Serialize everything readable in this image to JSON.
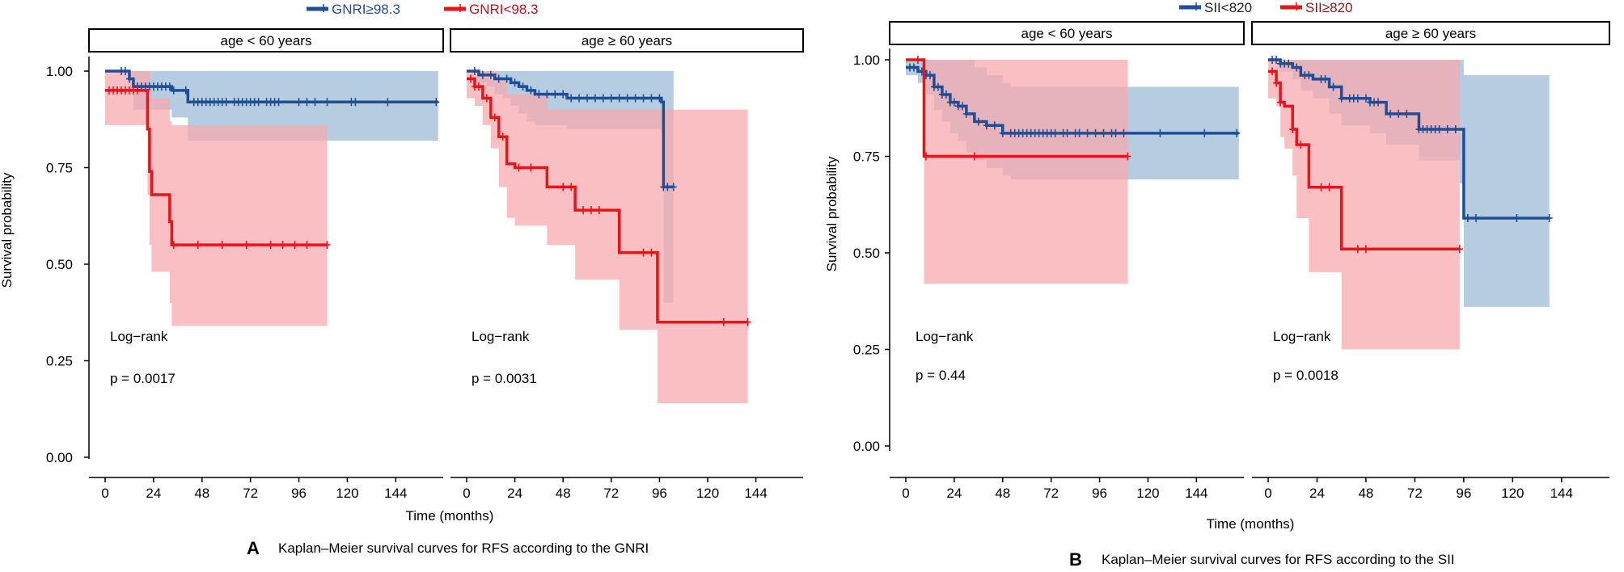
{
  "colors": {
    "blue": "#1f4e96",
    "blue_band": "#a8c3dc",
    "red": "#e8141b",
    "red_band": "#f7aaad",
    "legend_red_text": "#c0101a",
    "legend_blue_text": "#1f4e96",
    "legend_darkred_text": "#8b1a1a"
  },
  "chart_data": [
    {
      "type": "line",
      "panel_letter": "A",
      "caption": "Kaplan–Meier survival curves for RFS according to the GNRI",
      "xlabel": "Time (months)",
      "ylabel": "Survival probability",
      "ylim": [
        0,
        1
      ],
      "yticks": [
        "0.00",
        "0.25",
        "0.50",
        "0.75",
        "1.00"
      ],
      "yticks_values": [
        0,
        0.25,
        0.5,
        0.75,
        1.0
      ],
      "xticks": [
        0,
        24,
        48,
        72,
        96,
        120,
        144
      ],
      "legend": [
        {
          "label": "GNRI≥98.3",
          "color": "blue",
          "text_color": "legend_blue_text",
          "prefix": "",
          "colored": "GNRI≥98.3"
        },
        {
          "label": "GNRI<98.3",
          "color": "red",
          "text_color": "legend_red_text",
          "prefix": "",
          "colored": "GNRI<98.3"
        }
      ],
      "facets": [
        {
          "strip": "age < 60 years",
          "xlim": [
            -3,
            165
          ],
          "annotation": [
            "Log−rank",
            "p = 0.0017"
          ],
          "series": [
            {
              "name": "GNRI≥98.3",
              "color": "blue",
              "x": [
                0,
                12,
                14,
                33,
                41,
                165
              ],
              "y": [
                1.0,
                0.98,
                0.96,
                0.95,
                0.92,
                0.92
              ],
              "upper": [
                1.0,
                1.0,
                1.0,
                1.0,
                1.0,
                1.0
              ],
              "lower": [
                1.0,
                0.95,
                0.9,
                0.88,
                0.82,
                0.82
              ],
              "censor_x": [
                8,
                10,
                12,
                16,
                18,
                20,
                22,
                24,
                26,
                28,
                30,
                32,
                34,
                40,
                44,
                46,
                48,
                50,
                52,
                54,
                56,
                58,
                60,
                64,
                66,
                68,
                70,
                72,
                74,
                76,
                80,
                82,
                84,
                86,
                96,
                100,
                104,
                110,
                122,
                124,
                140,
                164
              ]
            },
            {
              "name": "GNRI<98.3",
              "color": "red",
              "x": [
                0,
                20,
                21,
                22,
                23,
                32,
                33,
                110
              ],
              "y": [
                0.95,
                0.95,
                0.85,
                0.74,
                0.68,
                0.61,
                0.55,
                0.55
              ],
              "upper": [
                1.0,
                1.0,
                1.0,
                0.96,
                0.93,
                0.87,
                0.86,
                0.86
              ],
              "lower": [
                0.86,
                0.86,
                0.68,
                0.55,
                0.48,
                0.4,
                0.34,
                0.34
              ],
              "censor_x": [
                2,
                4,
                6,
                8,
                10,
                12,
                14,
                16,
                34,
                46,
                58,
                70,
                82,
                88,
                94,
                100,
                110
              ]
            }
          ]
        },
        {
          "strip": "age ≥ 60 years",
          "xlim": [
            -3,
            165
          ],
          "annotation": [
            "Log−rank",
            "p = 0.0031"
          ],
          "series": [
            {
              "name": "GNRI≥98.3",
              "color": "blue",
              "x": [
                0,
                6,
                10,
                14,
                18,
                22,
                26,
                30,
                34,
                50,
                54,
                97,
                98,
                103
              ],
              "y": [
                1.0,
                0.99,
                0.99,
                0.98,
                0.98,
                0.97,
                0.96,
                0.95,
                0.94,
                0.93,
                0.93,
                0.92,
                0.7,
                0.7
              ],
              "upper": [
                1.0,
                1.0,
                1.0,
                1.0,
                1.0,
                1.0,
                1.0,
                1.0,
                1.0,
                1.0,
                1.0,
                1.0,
                1.0,
                1.0
              ],
              "lower": [
                1.0,
                0.97,
                0.96,
                0.94,
                0.93,
                0.91,
                0.89,
                0.87,
                0.86,
                0.85,
                0.85,
                0.84,
                0.4,
                0.4
              ],
              "censor_x": [
                4,
                8,
                12,
                16,
                20,
                24,
                28,
                32,
                36,
                40,
                44,
                48,
                52,
                56,
                60,
                64,
                68,
                72,
                76,
                80,
                84,
                88,
                92,
                96,
                98,
                100,
                103
              ]
            },
            {
              "name": "GNRI<98.3",
              "color": "red",
              "x": [
                0,
                4,
                8,
                12,
                16,
                20,
                24,
                40,
                54,
                76,
                95,
                140
              ],
              "y": [
                0.98,
                0.96,
                0.93,
                0.88,
                0.83,
                0.76,
                0.75,
                0.7,
                0.64,
                0.53,
                0.35,
                0.35
              ],
              "upper": [
                1.0,
                1.0,
                1.0,
                1.0,
                0.98,
                0.94,
                0.94,
                0.9,
                0.9,
                0.9,
                0.9,
                0.9
              ],
              "lower": [
                0.93,
                0.91,
                0.86,
                0.8,
                0.7,
                0.62,
                0.6,
                0.55,
                0.46,
                0.33,
                0.14,
                0.14
              ],
              "censor_x": [
                2,
                4,
                6,
                10,
                14,
                18,
                26,
                32,
                48,
                52,
                58,
                62,
                66,
                88,
                92,
                128,
                140
              ]
            }
          ]
        }
      ]
    },
    {
      "type": "line",
      "panel_letter": "B",
      "caption": "Kaplan–Meier survival curves for RFS according to the SII",
      "xlabel": "Time (months)",
      "ylabel": "Survival probability",
      "ylim": [
        0,
        1
      ],
      "yticks": [
        "0.00",
        "0.25",
        "0.50",
        "0.75",
        "1.00"
      ],
      "yticks_values": [
        0,
        0.25,
        0.5,
        0.75,
        1.0
      ],
      "xticks": [
        0,
        24,
        48,
        72,
        96,
        120,
        144
      ],
      "legend": [
        {
          "label": "SII<820",
          "color": "blue",
          "text_color": "legend_darkred_text",
          "colored": "SII<820"
        },
        {
          "label": "SII≥820",
          "color": "red",
          "text_color": "legend_darkred_text",
          "colored": "SII≥820"
        }
      ],
      "facets": [
        {
          "strip": "age < 60 years",
          "xlim": [
            -3,
            165
          ],
          "annotation": [
            "Log−rank",
            "p = 0.44"
          ],
          "series": [
            {
              "name": "SII<820",
              "color": "blue",
              "x": [
                0,
                6,
                10,
                14,
                18,
                22,
                26,
                30,
                34,
                40,
                48,
                52,
                165
              ],
              "y": [
                0.98,
                0.97,
                0.96,
                0.93,
                0.91,
                0.89,
                0.88,
                0.86,
                0.84,
                0.83,
                0.81,
                0.81,
                0.81
              ],
              "upper": [
                1.0,
                1.0,
                1.0,
                1.0,
                1.0,
                1.0,
                1.0,
                1.0,
                0.98,
                0.96,
                0.94,
                0.93,
                0.93
              ],
              "lower": [
                0.96,
                0.94,
                0.91,
                0.87,
                0.84,
                0.81,
                0.79,
                0.76,
                0.74,
                0.72,
                0.7,
                0.69,
                0.69
              ],
              "censor_x": [
                2,
                4,
                8,
                10,
                12,
                14,
                16,
                18,
                20,
                22,
                24,
                26,
                28,
                30,
                36,
                40,
                44,
                48,
                52,
                54,
                56,
                58,
                60,
                62,
                64,
                66,
                68,
                70,
                72,
                74,
                78,
                80,
                84,
                86,
                90,
                94,
                98,
                102,
                104,
                108,
                126,
                148,
                164
              ]
            },
            {
              "name": "SII≥820",
              "color": "red",
              "x": [
                0,
                8,
                9,
                110
              ],
              "y": [
                1.0,
                1.0,
                0.75,
                0.75
              ],
              "upper": [
                1.0,
                1.0,
                1.0,
                1.0
              ],
              "lower": [
                1.0,
                1.0,
                0.42,
                0.42
              ],
              "censor_x": [
                6,
                10,
                34,
                110
              ]
            }
          ]
        },
        {
          "strip": "age ≥ 60 years",
          "xlim": [
            -3,
            165
          ],
          "annotation": [
            "Log−rank",
            "p = 0.0018"
          ],
          "series": [
            {
              "name": "SII<820",
              "color": "blue",
              "x": [
                0,
                6,
                12,
                16,
                22,
                30,
                36,
                50,
                58,
                74,
                94,
                96,
                138
              ],
              "y": [
                1.0,
                0.99,
                0.98,
                0.96,
                0.95,
                0.93,
                0.9,
                0.89,
                0.86,
                0.82,
                0.82,
                0.59,
                0.59
              ],
              "upper": [
                1.0,
                1.0,
                1.0,
                1.0,
                1.0,
                1.0,
                1.0,
                1.0,
                1.0,
                1.0,
                1.0,
                0.96,
                0.96
              ],
              "lower": [
                1.0,
                0.97,
                0.95,
                0.92,
                0.9,
                0.86,
                0.83,
                0.81,
                0.78,
                0.74,
                0.68,
                0.36,
                0.36
              ],
              "censor_x": [
                2,
                4,
                6,
                8,
                10,
                14,
                18,
                20,
                26,
                28,
                32,
                36,
                40,
                42,
                44,
                48,
                50,
                52,
                54,
                60,
                64,
                68,
                74,
                76,
                78,
                80,
                82,
                84,
                88,
                92,
                98,
                102,
                122,
                138
              ]
            },
            {
              "name": "SII≥820",
              "color": "red",
              "x": [
                0,
                4,
                6,
                8,
                12,
                14,
                20,
                36,
                94
              ],
              "y": [
                0.97,
                0.94,
                0.89,
                0.88,
                0.82,
                0.78,
                0.67,
                0.51,
                0.51
              ],
              "upper": [
                1.0,
                1.0,
                1.0,
                1.0,
                1.0,
                1.0,
                1.0,
                1.0,
                1.0
              ],
              "lower": [
                0.9,
                0.88,
                0.8,
                0.77,
                0.7,
                0.59,
                0.45,
                0.25,
                0.25
              ],
              "censor_x": [
                2,
                4,
                6,
                12,
                16,
                26,
                30,
                44,
                48,
                94
              ]
            }
          ]
        }
      ]
    }
  ]
}
